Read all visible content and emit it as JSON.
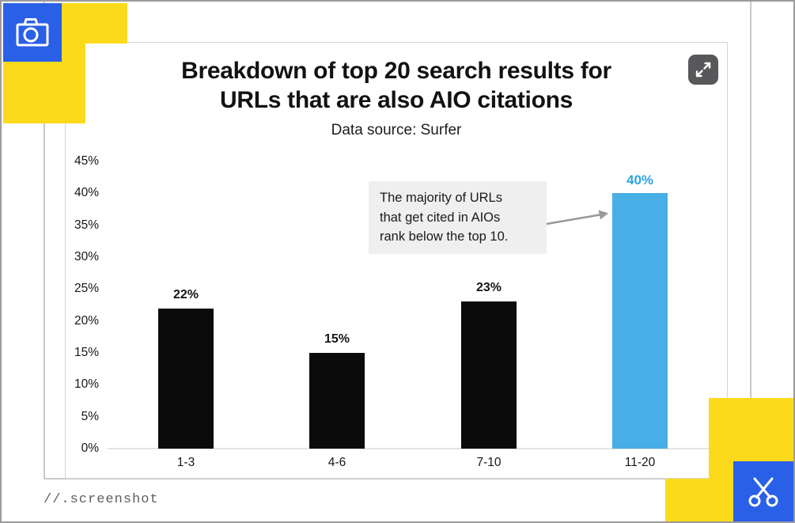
{
  "watermark": "//.screenshot",
  "icons": {
    "camera": "camera-icon",
    "scissors": "scissors-icon",
    "expand": "expand-fullscreen-icon"
  },
  "colors": {
    "accent_yellow": "#FBDA1C",
    "accent_blue": "#2A5FE8",
    "bar_black": "#0B0B0B",
    "bar_highlight": "#47AEE6",
    "value_highlight": "#2FA3E3",
    "annotation_bg": "#EFEFEF",
    "arrow_gray": "#999999",
    "expand_bg": "#58585A"
  },
  "chart_data": {
    "type": "bar",
    "title": "Breakdown of top 20 search results for\nURLs that are also AIO citations",
    "subtitle": "Data source: Surfer",
    "categories": [
      "1-3",
      "4-6",
      "7-10",
      "11-20"
    ],
    "values": [
      22,
      15,
      23,
      40
    ],
    "value_labels": [
      "22%",
      "15%",
      "23%",
      "40%"
    ],
    "highlight_index": 3,
    "xlabel": "",
    "ylabel": "",
    "ylim": [
      0,
      45
    ],
    "ytick_step": 5,
    "yticks": [
      "0%",
      "5%",
      "10%",
      "15%",
      "20%",
      "25%",
      "30%",
      "35%",
      "40%",
      "45%"
    ],
    "grid": "off",
    "legend": "none",
    "annotation": {
      "text": "The majority of URLs\nthat get cited in AIOs\nrank below the top 10.",
      "points_to": "11-20"
    }
  }
}
